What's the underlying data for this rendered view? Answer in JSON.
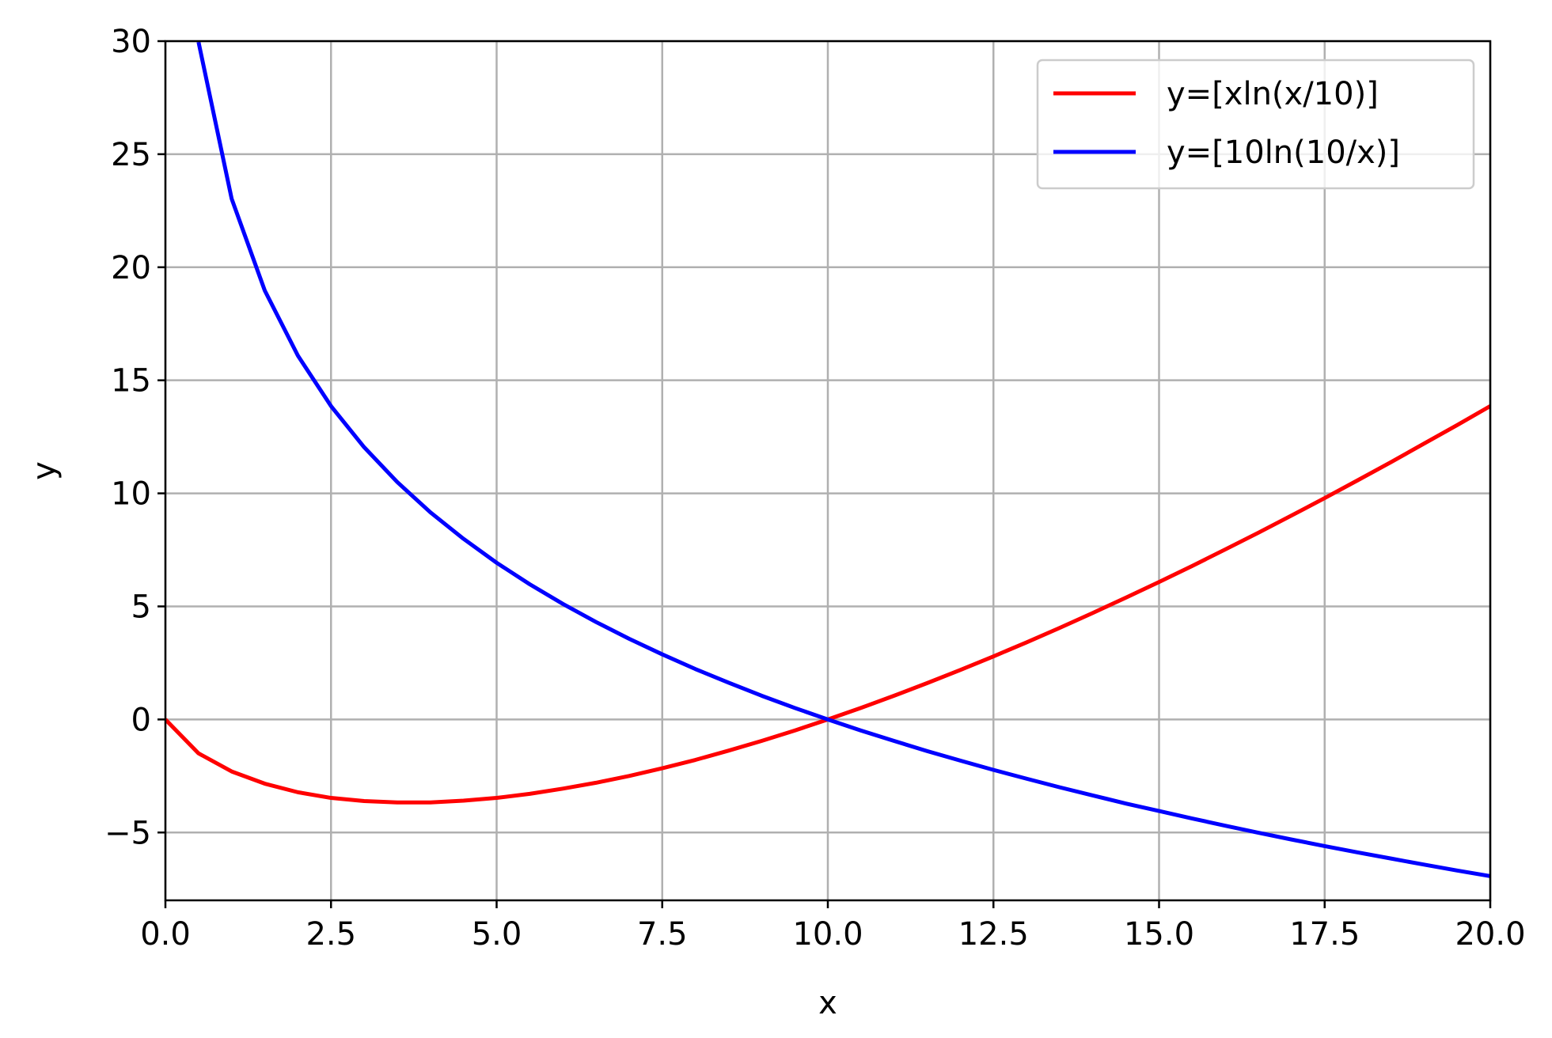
{
  "chart_data": {
    "type": "line",
    "title": "",
    "xlabel": "x",
    "ylabel": "y",
    "xlim": [
      0,
      20
    ],
    "ylim": [
      -8,
      30
    ],
    "grid": true,
    "legend_position": "top-right",
    "x_ticks": [
      0,
      2.5,
      5,
      7.5,
      10,
      12.5,
      15,
      17.5,
      20
    ],
    "x_tick_labels": [
      "0.0",
      "2.5",
      "5.0",
      "7.5",
      "10.0",
      "12.5",
      "15.0",
      "17.5",
      "20.0"
    ],
    "y_ticks": [
      -5,
      0,
      5,
      10,
      15,
      20,
      25,
      30
    ],
    "y_tick_labels": [
      "−5",
      "0",
      "5",
      "10",
      "15",
      "20",
      "25",
      "30"
    ],
    "series": [
      {
        "name": "y=[xln(x/10)]",
        "color": "#ff0000",
        "x": [
          0,
          0.5,
          1,
          1.5,
          2,
          2.5,
          3,
          3.5,
          4,
          4.5,
          5,
          5.5,
          6,
          6.5,
          7,
          7.5,
          8,
          8.5,
          9,
          9.5,
          10,
          10.5,
          11,
          11.5,
          12,
          12.5,
          13,
          13.5,
          14,
          14.5,
          15,
          15.5,
          16,
          16.5,
          17,
          17.5,
          18,
          18.5,
          19,
          19.5,
          20
        ],
        "y": [
          0,
          -1.5,
          -2.3,
          -2.84,
          -3.22,
          -3.47,
          -3.61,
          -3.67,
          -3.67,
          -3.59,
          -3.47,
          -3.29,
          -3.06,
          -2.8,
          -2.5,
          -2.16,
          -1.79,
          -1.38,
          -0.95,
          -0.49,
          0,
          0.51,
          1.05,
          1.61,
          2.19,
          2.79,
          3.41,
          4.05,
          4.71,
          5.39,
          6.08,
          6.79,
          7.52,
          8.26,
          9.02,
          9.79,
          10.58,
          11.38,
          12.2,
          13.02,
          13.86
        ]
      },
      {
        "name": "y=[10ln(10/x)]",
        "color": "#0000ff",
        "x": [
          0.5,
          1,
          1.5,
          2,
          2.5,
          3,
          3.5,
          4,
          4.5,
          5,
          5.5,
          6,
          6.5,
          7,
          7.5,
          8,
          8.5,
          9,
          9.5,
          10,
          10.5,
          11,
          11.5,
          12,
          12.5,
          13,
          13.5,
          14,
          14.5,
          15,
          15.5,
          16,
          16.5,
          17,
          17.5,
          18,
          18.5,
          19,
          19.5,
          20
        ],
        "y": [
          29.96,
          23.03,
          18.97,
          16.09,
          13.86,
          12.04,
          10.5,
          9.16,
          7.99,
          6.93,
          5.98,
          5.11,
          4.31,
          3.57,
          2.88,
          2.23,
          1.63,
          1.05,
          0.51,
          0,
          -0.49,
          -0.95,
          -1.4,
          -1.82,
          -2.23,
          -2.62,
          -3.0,
          -3.36,
          -3.72,
          -4.05,
          -4.38,
          -4.7,
          -5.01,
          -5.31,
          -5.6,
          -5.88,
          -6.15,
          -6.42,
          -6.68,
          -6.93
        ]
      }
    ]
  }
}
